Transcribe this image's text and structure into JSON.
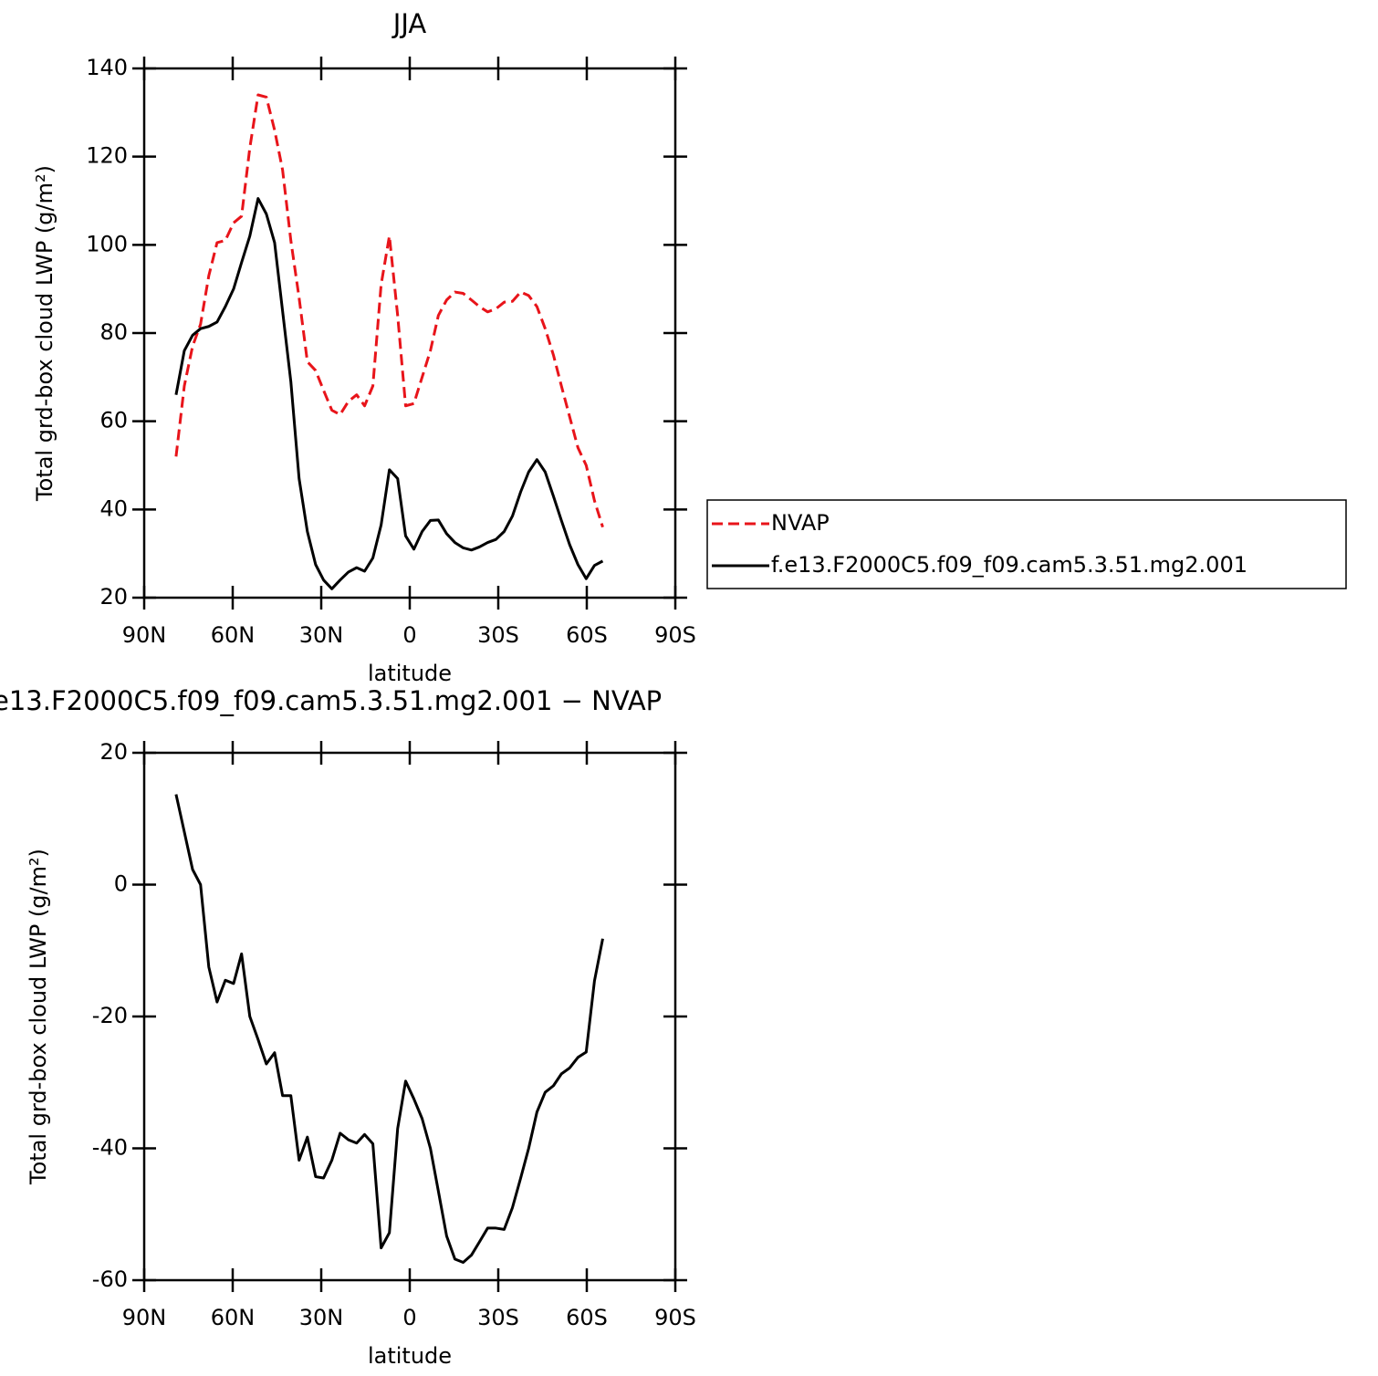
{
  "chart_data": [
    {
      "type": "line",
      "title": "JJA",
      "x_label": "latitude",
      "y_label": "Total grd-box cloud LWP (g/m²)",
      "x": [
        79.2,
        76.4,
        73.6,
        70.9,
        68.1,
        65.3,
        62.5,
        59.7,
        57.0,
        54.2,
        51.4,
        48.6,
        45.8,
        43.1,
        40.3,
        37.5,
        34.7,
        31.9,
        29.2,
        26.4,
        23.6,
        20.8,
        18.0,
        15.3,
        12.5,
        9.7,
        6.9,
        4.1,
        1.4,
        -1.4,
        -4.2,
        -7.0,
        -9.7,
        -12.5,
        -15.3,
        -18.1,
        -20.9,
        -23.6,
        -26.4,
        -29.2,
        -32.0,
        -34.8,
        -37.6,
        -40.3,
        -43.1,
        -45.9,
        -48.7,
        -51.4,
        -54.2,
        -57.0,
        -59.8,
        -62.6,
        -65.4
      ],
      "series": [
        {
          "name": "NVAP",
          "color": "#e8141a",
          "line_style": "dashed",
          "values": [
            52,
            68,
            77,
            82,
            93,
            100.5,
            101,
            105,
            106.5,
            122,
            134,
            133.5,
            126,
            117,
            101,
            88,
            73.5,
            71.5,
            67,
            62.5,
            61.5,
            64.5,
            66,
            63.5,
            68,
            91,
            102,
            84,
            63.5,
            64,
            70,
            76,
            84,
            87.5,
            89.3,
            89,
            87.5,
            86,
            84.8,
            85.5,
            87,
            87.2,
            89.3,
            88.5,
            86,
            81,
            75,
            68,
            61,
            54,
            50,
            42,
            36
          ]
        },
        {
          "name": "f.e13.F2000C5.f09_f09.cam5.3.51.mg2.001",
          "color": "#000000",
          "line_style": "solid",
          "values": [
            66,
            76,
            79.5,
            81,
            81.5,
            82.5,
            86,
            90,
            96,
            102,
            110.5,
            107,
            100.5,
            85,
            69,
            47,
            35,
            27.5,
            24,
            22,
            24,
            25.8,
            26.8,
            26,
            29,
            36.5,
            49,
            47,
            34,
            31,
            35,
            37.5,
            37.6,
            34.5,
            32.5,
            31.3,
            30.8,
            31.5,
            32.5,
            33.2,
            35,
            38.5,
            44,
            48.5,
            51.3,
            48.5,
            43,
            37.5,
            32,
            27.5,
            24.3,
            27.3,
            28.3
          ]
        }
      ],
      "xlim": [
        90,
        -90
      ],
      "xticks": [
        {
          "value": 90,
          "label": "90N"
        },
        {
          "value": 60,
          "label": "60N"
        },
        {
          "value": 30,
          "label": "30N"
        },
        0,
        {
          "value": -30,
          "label": "30S"
        },
        {
          "value": -60,
          "label": "60S"
        },
        {
          "value": -90,
          "label": "90S"
        }
      ],
      "ylim": [
        20,
        140
      ],
      "yticks": [
        20,
        40,
        60,
        80,
        100,
        120,
        140
      ],
      "legend_position": "right"
    },
    {
      "type": "line",
      "title": "e13.F2000C5.f09_f09.cam5.3.51.mg2.001  −  NVAP",
      "x_label": "latitude",
      "y_label": "Total grd-box cloud LWP (g/m²)",
      "x": [
        79.2,
        76.4,
        73.6,
        70.9,
        68.1,
        65.3,
        62.5,
        59.7,
        57.0,
        54.2,
        51.4,
        48.6,
        45.8,
        43.1,
        40.3,
        37.5,
        34.7,
        31.9,
        29.2,
        26.4,
        23.6,
        20.8,
        18.0,
        15.3,
        12.5,
        9.7,
        6.9,
        4.1,
        1.4,
        -1.4,
        -4.2,
        -7.0,
        -9.7,
        -12.5,
        -15.3,
        -18.1,
        -20.9,
        -23.6,
        -26.4,
        -29.2,
        -32.0,
        -34.8,
        -37.6,
        -40.3,
        -43.1,
        -45.9,
        -48.7,
        -51.4,
        -54.2,
        -57.0,
        -59.8,
        -62.6,
        -65.4
      ],
      "series": [
        {
          "color": "#000000",
          "line_style": "solid",
          "values": [
            13.7,
            8,
            2.3,
            0,
            -12.5,
            -17.8,
            -14.5,
            -15,
            -10.5,
            -20,
            -23.5,
            -27.2,
            -25.5,
            -32,
            -32,
            -41.8,
            -38.3,
            -44.3,
            -44.5,
            -41.8,
            -37.7,
            -38.7,
            -39.2,
            -37.9,
            -39.3,
            -55.1,
            -52.8,
            -37,
            -29.8,
            -32.5,
            -35.5,
            -40,
            -46.5,
            -53.3,
            -56.8,
            -57.3,
            -56.2,
            -54.2,
            -52.1,
            -52.1,
            -52.3,
            -49,
            -44.5,
            -40,
            -34.5,
            -31.5,
            -30.5,
            -28.7,
            -27.8,
            -26.2,
            -25.4,
            -14.6,
            -8.2
          ]
        }
      ],
      "xlim": [
        90,
        -90
      ],
      "xticks": [
        {
          "value": 90,
          "label": "90N"
        },
        {
          "value": 60,
          "label": "60N"
        },
        {
          "value": 30,
          "label": "30N"
        },
        0,
        {
          "value": -30,
          "label": "30S"
        },
        {
          "value": -60,
          "label": "60S"
        },
        {
          "value": -90,
          "label": "90S"
        }
      ],
      "ylim": [
        -60,
        20
      ],
      "yticks": [
        -60,
        -40,
        -20,
        0,
        20
      ]
    }
  ]
}
